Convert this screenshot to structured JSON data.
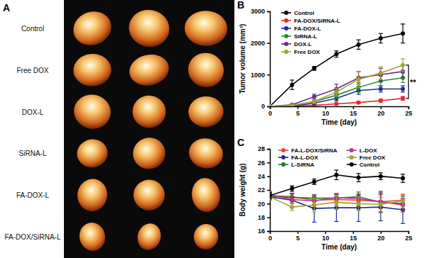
{
  "panel_a": {
    "label": "A",
    "rows": [
      "Control",
      "Free DOX",
      "DOX-L",
      "SiRNA-L",
      "FA-DOX-L",
      "FA-DOX/SiRNA-L"
    ]
  },
  "chart_data": [
    {
      "type": "line",
      "panel_label": "B",
      "x_label": "Time (day)",
      "y_label": "Tumor volume (mm³)",
      "x": [
        0,
        4,
        8,
        12,
        16,
        20,
        24
      ],
      "xlim": [
        0,
        25
      ],
      "xticks": [
        0,
        5,
        10,
        15,
        20,
        25
      ],
      "ylim": [
        0,
        3000
      ],
      "yticks": [
        0,
        1000,
        2000,
        3000
      ],
      "grid": false,
      "legend": "top-left",
      "marker": "circle",
      "annotations": [
        "**"
      ],
      "series": [
        {
          "name": "Control",
          "color": "#000000",
          "values": [
            0,
            680,
            1200,
            1650,
            1950,
            2150,
            2300
          ],
          "errors": [
            20,
            150,
            60,
            100,
            150,
            150,
            300
          ]
        },
        {
          "name": "FA-DOX/SiRNA-L",
          "color": "#e8262b",
          "values": [
            0,
            0,
            30,
            80,
            120,
            180,
            250
          ],
          "errors": [
            0,
            10,
            20,
            30,
            40,
            50,
            60
          ]
        },
        {
          "name": "FA-DOX-L",
          "color": "#1f2d8f",
          "values": [
            0,
            0,
            100,
            250,
            500,
            550,
            550
          ],
          "errors": [
            0,
            10,
            40,
            80,
            120,
            100,
            100
          ]
        },
        {
          "name": "SiRNA-L",
          "color": "#2e8b2e",
          "values": [
            0,
            20,
            150,
            350,
            600,
            800,
            900
          ],
          "errors": [
            0,
            15,
            50,
            100,
            150,
            150,
            150
          ]
        },
        {
          "name": "DOX-L",
          "color": "#6a2c8f",
          "values": [
            0,
            50,
            300,
            550,
            900,
            1000,
            1100
          ],
          "errors": [
            0,
            20,
            80,
            150,
            200,
            200,
            200
          ]
        },
        {
          "name": "Free DOX",
          "color": "#a8a030",
          "values": [
            0,
            30,
            150,
            450,
            850,
            1050,
            1300
          ],
          "errors": [
            0,
            20,
            60,
            120,
            250,
            200,
            200
          ]
        }
      ]
    },
    {
      "type": "line",
      "panel_label": "C",
      "x_label": "Time (day)",
      "y_label": "Body weight (g)",
      "x": [
        0,
        4,
        8,
        12,
        16,
        20,
        24
      ],
      "xlim": [
        0,
        25
      ],
      "xticks": [
        0,
        5,
        10,
        15,
        20,
        25
      ],
      "ylim": [
        16,
        28
      ],
      "yticks": [
        16,
        18,
        20,
        22,
        24,
        26,
        28
      ],
      "grid": false,
      "legend": "top",
      "marker": "circle",
      "series": [
        {
          "name": "FA-L-DOX/SiRNA",
          "color": "#f0403a",
          "values": [
            21.2,
            21.0,
            20.5,
            20.6,
            20.5,
            20.3,
            20.5
          ],
          "errors": [
            0.5,
            0.5,
            0.6,
            0.8,
            0.8,
            1.0,
            0.8
          ]
        },
        {
          "name": "FA-L-DOX",
          "color": "#1c2a9a",
          "values": [
            21.0,
            20.5,
            19.3,
            19.4,
            19.4,
            19.5,
            19.1
          ],
          "errors": [
            0.5,
            1.0,
            2.0,
            2.0,
            2.0,
            2.0,
            2.0
          ]
        },
        {
          "name": "L-SiRNA",
          "color": "#1f7a1f",
          "values": [
            21.1,
            20.9,
            20.8,
            20.8,
            21.0,
            20.2,
            20.0
          ],
          "errors": [
            0.5,
            0.5,
            0.5,
            0.5,
            0.7,
            1.5,
            0.8
          ]
        },
        {
          "name": "L-DOX",
          "color": "#c0308a",
          "values": [
            21.3,
            20.6,
            20.4,
            20.9,
            20.7,
            20.3,
            19.8
          ],
          "errors": [
            0.5,
            0.5,
            0.6,
            0.6,
            0.7,
            1.5,
            1.0
          ]
        },
        {
          "name": "Free DOX",
          "color": "#a8a030",
          "values": [
            21.0,
            19.5,
            19.8,
            20.2,
            20.0,
            19.9,
            20.4
          ],
          "errors": [
            0.5,
            0.5,
            1.0,
            1.0,
            1.0,
            1.0,
            1.0
          ]
        },
        {
          "name": "Control",
          "color": "#000000",
          "values": [
            21.2,
            22.2,
            23.2,
            24.2,
            23.8,
            24.0,
            23.7
          ],
          "errors": [
            0.4,
            0.4,
            0.4,
            0.7,
            0.6,
            0.5,
            0.6
          ]
        }
      ]
    }
  ]
}
